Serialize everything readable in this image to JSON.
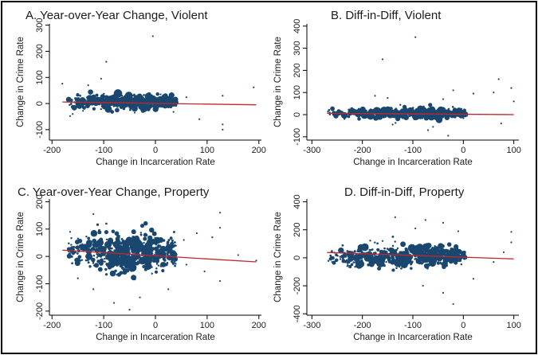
{
  "chart_data": [
    {
      "type": "scatter",
      "title": "A. Year-over-Year Change, Violent",
      "xlabel": "Change in Incarceration Rate",
      "ylabel": "Change in Crime Rate",
      "xlim": [
        -205,
        205
      ],
      "ylim": [
        -140,
        305
      ],
      "x_ticks": [
        -200,
        -100,
        0,
        100,
        200
      ],
      "y_ticks": [
        -100,
        0,
        100,
        200,
        300
      ],
      "grid": false,
      "marker_color": "#1a476f",
      "fit_color": "#c0282d",
      "fit_line": {
        "x": [
          -180,
          195
        ],
        "y": [
          6,
          -5
        ]
      },
      "cloud": {
        "x_range": [
          -170,
          40
        ],
        "y_center": 6,
        "y_spread": 14
      },
      "points": [
        {
          "x": -5,
          "y": 258
        },
        {
          "x": -95,
          "y": 160
        },
        {
          "x": -105,
          "y": 95
        },
        {
          "x": -180,
          "y": 76
        },
        {
          "x": -130,
          "y": 70
        },
        {
          "x": 190,
          "y": 62
        },
        {
          "x": 130,
          "y": 30
        },
        {
          "x": 130,
          "y": -80
        },
        {
          "x": 130,
          "y": -100
        },
        {
          "x": 85,
          "y": -60
        },
        {
          "x": 35,
          "y": -32
        },
        {
          "x": -165,
          "y": -48
        },
        {
          "x": -160,
          "y": -40
        },
        {
          "x": -140,
          "y": -28
        },
        {
          "x": 60,
          "y": 24
        },
        {
          "x": -40,
          "y": -35
        },
        {
          "x": 10,
          "y": 35
        },
        {
          "x": 25,
          "y": -15
        }
      ]
    },
    {
      "type": "scatter",
      "title": "B. Diff-in-Diff, Violent",
      "xlabel": "Change in Incarceration Rate",
      "ylabel": "Change in Crime Rate",
      "xlim": [
        -310,
        110
      ],
      "ylim": [
        -115,
        410
      ],
      "x_ticks": [
        -300,
        -200,
        -100,
        0,
        100
      ],
      "y_ticks": [
        -100,
        0,
        100,
        200,
        300,
        400
      ],
      "grid": false,
      "marker_color": "#1a476f",
      "fit_color": "#c0282d",
      "fit_line": {
        "x": [
          -270,
          100
        ],
        "y": [
          6,
          0
        ]
      },
      "cloud": {
        "x_range": [
          -270,
          5
        ],
        "y_center": 6,
        "y_spread": 13
      },
      "points": [
        {
          "x": -95,
          "y": 350
        },
        {
          "x": -160,
          "y": 250
        },
        {
          "x": -175,
          "y": 85
        },
        {
          "x": 70,
          "y": 160
        },
        {
          "x": 95,
          "y": 120
        },
        {
          "x": 60,
          "y": 100
        },
        {
          "x": 20,
          "y": 95
        },
        {
          "x": 75,
          "y": -40
        },
        {
          "x": 100,
          "y": 60
        },
        {
          "x": -140,
          "y": -45
        },
        {
          "x": -60,
          "y": -55
        },
        {
          "x": -30,
          "y": -95
        },
        {
          "x": -20,
          "y": 110
        },
        {
          "x": -150,
          "y": 75
        },
        {
          "x": -40,
          "y": 70
        },
        {
          "x": -70,
          "y": -70
        }
      ]
    },
    {
      "type": "scatter",
      "title": "C. Year-over-Year Change, Property",
      "xlabel": "Change in Incarceration Rate",
      "ylabel": "Change in Crime Rate",
      "xlim": [
        -205,
        205
      ],
      "ylim": [
        -215,
        210
      ],
      "x_ticks": [
        -200,
        -100,
        0,
        100,
        200
      ],
      "y_ticks": [
        -200,
        -100,
        0,
        100,
        200
      ],
      "grid": false,
      "marker_color": "#1a476f",
      "fit_color": "#c0282d",
      "fit_line": {
        "x": [
          -180,
          195
        ],
        "y": [
          23,
          -20
        ]
      },
      "cloud": {
        "x_range": [
          -170,
          40
        ],
        "y_center": 12,
        "y_spread": 38
      },
      "points": [
        {
          "x": 125,
          "y": 160
        },
        {
          "x": -120,
          "y": 155
        },
        {
          "x": 125,
          "y": 105
        },
        {
          "x": 80,
          "y": 85
        },
        {
          "x": 110,
          "y": 70
        },
        {
          "x": 55,
          "y": 60
        },
        {
          "x": 60,
          "y": -30
        },
        {
          "x": 125,
          "y": -90
        },
        {
          "x": 95,
          "y": -55
        },
        {
          "x": -80,
          "y": -170
        },
        {
          "x": -50,
          "y": -195
        },
        {
          "x": -120,
          "y": -120
        },
        {
          "x": -150,
          "y": -80
        },
        {
          "x": 25,
          "y": -120
        },
        {
          "x": -30,
          "y": -150
        },
        {
          "x": -165,
          "y": 90
        },
        {
          "x": 160,
          "y": 5
        },
        {
          "x": 195,
          "y": -15
        }
      ]
    },
    {
      "type": "scatter",
      "title": "D. Diff-in-Diff, Property",
      "xlabel": "Change in Incarceration Rate",
      "ylabel": "Change in Crime Rate",
      "xlim": [
        -310,
        110
      ],
      "ylim": [
        -410,
        420
      ],
      "x_ticks": [
        -300,
        -200,
        -100,
        0,
        100
      ],
      "y_ticks": [
        -400,
        -200,
        0,
        200,
        400
      ],
      "grid": false,
      "marker_color": "#1a476f",
      "fit_color": "#c0282d",
      "fit_line": {
        "x": [
          -270,
          100
        ],
        "y": [
          38,
          -8
        ]
      },
      "cloud": {
        "x_range": [
          -270,
          5
        ],
        "y_center": 12,
        "y_spread": 42
      },
      "points": [
        {
          "x": 95,
          "y": 185
        },
        {
          "x": 95,
          "y": 110
        },
        {
          "x": -75,
          "y": 270
        },
        {
          "x": -40,
          "y": 250
        },
        {
          "x": -95,
          "y": 210
        },
        {
          "x": -135,
          "y": 290
        },
        {
          "x": 60,
          "y": -30
        },
        {
          "x": -20,
          "y": -330
        },
        {
          "x": -40,
          "y": -250
        },
        {
          "x": -80,
          "y": -200
        },
        {
          "x": -230,
          "y": -60
        },
        {
          "x": -160,
          "y": 120
        },
        {
          "x": -200,
          "y": 80
        },
        {
          "x": 20,
          "y": -150
        },
        {
          "x": -10,
          "y": 190
        },
        {
          "x": 80,
          "y": 40
        },
        {
          "x": -260,
          "y": -30
        }
      ]
    }
  ]
}
